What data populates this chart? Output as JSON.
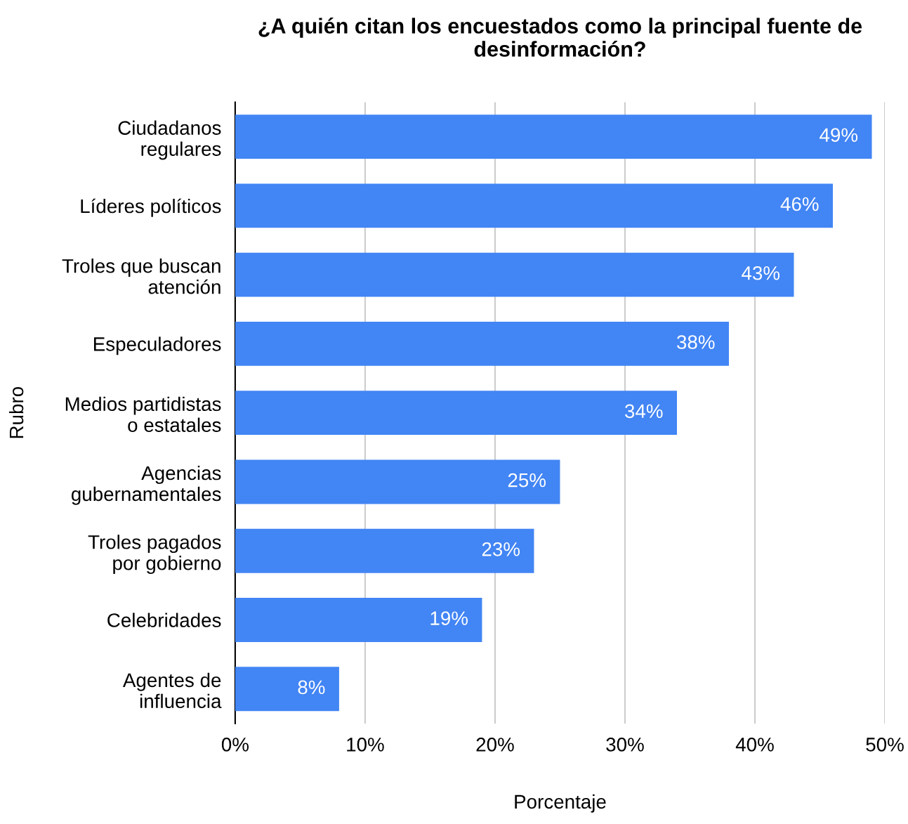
{
  "chart_data": {
    "type": "bar",
    "orientation": "horizontal",
    "title": "¿A quién citan los encuestados como la principal fuente de desinformación?",
    "xlabel": "Porcentaje",
    "ylabel": "Rubro",
    "categories": [
      "Ciudadanos\nregulares",
      "Líderes políticos",
      "Troles que buscan\natención",
      "Especuladores",
      "Medios partidistas\no estatales",
      "Agencias\ngubernamentales",
      "Troles pagados\npor gobierno",
      "Celebridades",
      "Agentes de\ninfluencia"
    ],
    "values": [
      49,
      46,
      43,
      38,
      34,
      25,
      23,
      19,
      8
    ],
    "value_labels": [
      "49%",
      "46%",
      "43%",
      "38%",
      "34%",
      "25%",
      "23%",
      "19%",
      "8%"
    ],
    "color": "#4285f4",
    "xlim": [
      0,
      50
    ],
    "xticks": [
      {
        "value": 0,
        "label": "0%"
      },
      {
        "value": 10,
        "label": "10%"
      },
      {
        "value": 20,
        "label": "20%"
      },
      {
        "value": 30,
        "label": "30%"
      },
      {
        "value": 40,
        "label": "40%"
      },
      {
        "value": 50,
        "label": "50%"
      }
    ],
    "grid": "x",
    "legend": false
  }
}
